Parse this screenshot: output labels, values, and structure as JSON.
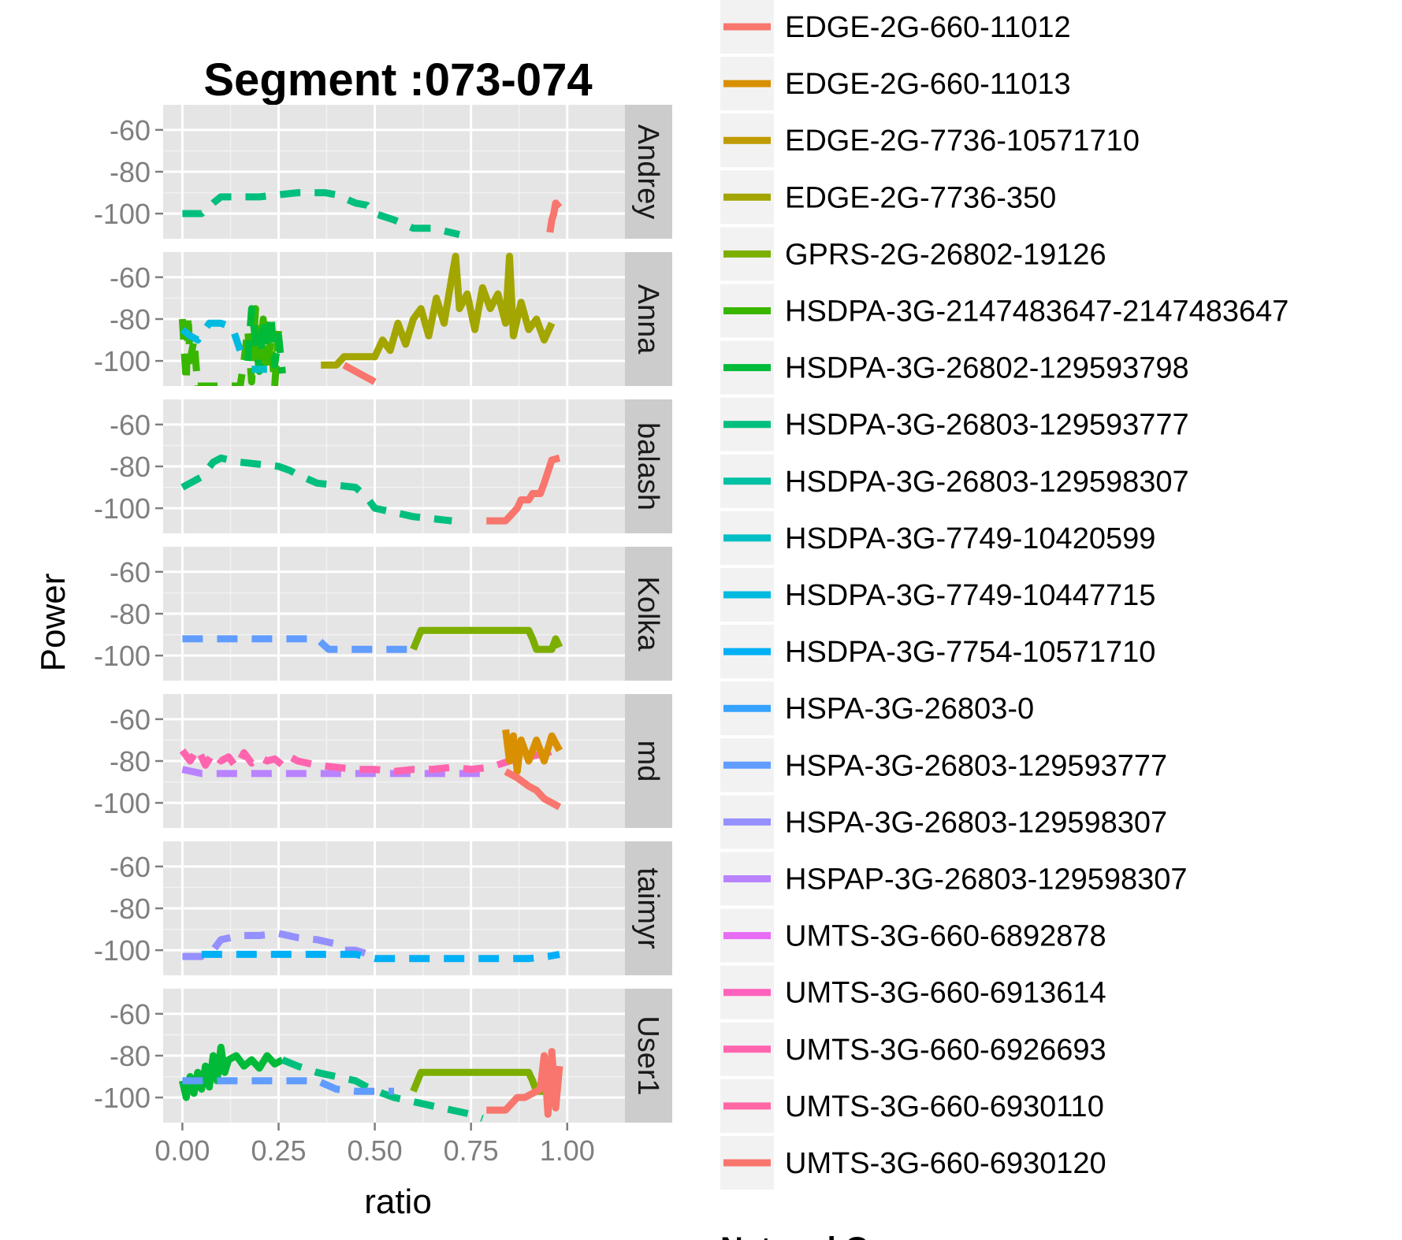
{
  "chart_data": {
    "type": "line",
    "title": "Segment :073-074",
    "xlabel": "ratio",
    "ylabel": "Power",
    "xlim": [
      -0.05,
      1.15
    ],
    "ylim": [
      -112,
      -48
    ],
    "x_ticks": [
      0.0,
      0.25,
      0.5,
      0.75,
      1.0
    ],
    "x_tick_labels": [
      "0.00",
      "0.25",
      "0.50",
      "0.75",
      "1.00"
    ],
    "y_ticks": [
      -60,
      -80,
      -100
    ],
    "y_tick_labels": [
      "-60",
      "-80",
      "-100"
    ],
    "grid": true,
    "legend_position": "right",
    "legend_title": "NetworkGen",
    "legend": [
      {
        "name": "EDGE-2G-660-11012",
        "color": "#F8766D"
      },
      {
        "name": "EDGE-2G-660-11013",
        "color": "#D89000"
      },
      {
        "name": "EDGE-2G-7736-10571710",
        "color": "#C09B00"
      },
      {
        "name": "EDGE-2G-7736-350",
        "color": "#A3A500"
      },
      {
        "name": "GPRS-2G-26802-19126",
        "color": "#7CAE00"
      },
      {
        "name": "HSDPA-3G-2147483647-2147483647",
        "color": "#39B600"
      },
      {
        "name": "HSDPA-3G-26802-129593798",
        "color": "#00BA38"
      },
      {
        "name": "HSDPA-3G-26803-129593777",
        "color": "#00BF7D"
      },
      {
        "name": "HSDPA-3G-26803-129598307",
        "color": "#00C1A3"
      },
      {
        "name": "HSDPA-3G-7749-10420599",
        "color": "#00BFC4"
      },
      {
        "name": "HSDPA-3G-7749-10447715",
        "color": "#00BAE0"
      },
      {
        "name": "HSDPA-3G-7754-10571710",
        "color": "#00B0F6"
      },
      {
        "name": "HSPA-3G-26803-0",
        "color": "#35A2FF"
      },
      {
        "name": "HSPA-3G-26803-129593777",
        "color": "#619CFF"
      },
      {
        "name": "HSPA-3G-26803-129598307",
        "color": "#9590FF"
      },
      {
        "name": "HSPAP-3G-26803-129598307",
        "color": "#B983FF"
      },
      {
        "name": "UMTS-3G-660-6892878",
        "color": "#E76BF3"
      },
      {
        "name": "UMTS-3G-660-6913614",
        "color": "#FF62BC"
      },
      {
        "name": "UMTS-3G-660-6926693",
        "color": "#FF65AE"
      },
      {
        "name": "UMTS-3G-660-6930110",
        "color": "#FF67A4"
      },
      {
        "name": "UMTS-3G-660-6930120",
        "color": "#F8766D"
      }
    ],
    "facets": [
      {
        "label": "Andrey",
        "series": [
          {
            "color": "#00BF7D",
            "dashed": true,
            "x": [
              0.0,
              0.05,
              0.08,
              0.1,
              0.12,
              0.15,
              0.2,
              0.25,
              0.3,
              0.35,
              0.37,
              0.4,
              0.45,
              0.48,
              0.5,
              0.55,
              0.6,
              0.65,
              0.72
            ],
            "y": [
              -100,
              -100,
              -95,
              -92,
              -92,
              -92,
              -92,
              -91,
              -90,
              -90,
              -90,
              -91,
              -95,
              -96,
              -100,
              -103,
              -107,
              -107,
              -110
            ]
          },
          {
            "color": "#F8766D",
            "dashed": false,
            "x": [
              0.955,
              0.96,
              0.965,
              0.97,
              0.975,
              0.98
            ],
            "y": [
              -109,
              -103,
              -100,
              -95,
              -96,
              -97
            ]
          }
        ]
      },
      {
        "label": "Anna",
        "series": [
          {
            "color": "#39B600",
            "dashed": true,
            "x": [
              0.0,
              0.005,
              0.01,
              0.015,
              0.02,
              0.03,
              0.04,
              0.06,
              0.1,
              0.13,
              0.15,
              0.16,
              0.17,
              0.18,
              0.19,
              0.2,
              0.21,
              0.22,
              0.23,
              0.24,
              0.25
            ],
            "y": [
              -80,
              -95,
              -110,
              -78,
              -100,
              -90,
              -112,
              -112,
              -112,
              -112,
              -112,
              -100,
              -85,
              -110,
              -75,
              -100,
              -80,
              -105,
              -90,
              -112,
              -85
            ]
          },
          {
            "color": "#00BA38",
            "dashed": true,
            "x": [
              0.17,
              0.18,
              0.19,
              0.2,
              0.21,
              0.22,
              0.23,
              0.24,
              0.25,
              0.26
            ],
            "y": [
              -100,
              -75,
              -90,
              -105,
              -80,
              -95,
              -78,
              -102,
              -88,
              -106
            ]
          },
          {
            "color": "#00BAE0",
            "dashed": true,
            "x": [
              0.0,
              0.02,
              0.04,
              0.07,
              0.1,
              0.13,
              0.15
            ],
            "y": [
              -85,
              -88,
              -90,
              -82,
              -82,
              -84,
              -95
            ]
          },
          {
            "color": "#00BFC4",
            "dashed": true,
            "x": [
              0.18,
              0.2,
              0.22
            ],
            "y": [
              -104,
              -104,
              -104
            ]
          },
          {
            "color": "#A3A500",
            "dashed": false,
            "x": [
              0.36,
              0.4,
              0.42,
              0.45,
              0.5,
              0.52,
              0.54,
              0.56,
              0.58,
              0.6,
              0.62,
              0.64,
              0.66,
              0.68,
              0.7,
              0.71,
              0.72,
              0.74,
              0.76,
              0.78,
              0.8,
              0.82,
              0.84,
              0.85,
              0.86,
              0.88,
              0.9,
              0.92,
              0.94,
              0.96
            ],
            "y": [
              -102,
              -102,
              -98,
              -98,
              -98,
              -90,
              -95,
              -82,
              -92,
              -80,
              -75,
              -88,
              -70,
              -82,
              -60,
              -50,
              -75,
              -68,
              -85,
              -65,
              -75,
              -68,
              -82,
              -50,
              -88,
              -72,
              -85,
              -80,
              -90,
              -82
            ]
          },
          {
            "color": "#F8766D",
            "dashed": false,
            "x": [
              0.42,
              0.45,
              0.48,
              0.5
            ],
            "y": [
              -102,
              -105,
              -108,
              -110
            ]
          }
        ]
      },
      {
        "label": "balash",
        "series": [
          {
            "color": "#00BF7D",
            "dashed": true,
            "x": [
              0.0,
              0.02,
              0.05,
              0.08,
              0.1,
              0.15,
              0.2,
              0.25,
              0.28,
              0.3,
              0.35,
              0.4,
              0.45,
              0.48,
              0.5,
              0.55,
              0.6,
              0.65,
              0.7
            ],
            "y": [
              -90,
              -88,
              -85,
              -78,
              -76,
              -78,
              -79,
              -80,
              -82,
              -84,
              -88,
              -89,
              -90,
              -95,
              -100,
              -102,
              -104,
              -105,
              -106
            ]
          },
          {
            "color": "#F8766D",
            "dashed": false,
            "x": [
              0.79,
              0.84,
              0.85,
              0.87,
              0.88,
              0.9,
              0.91,
              0.93,
              0.94,
              0.96,
              0.98
            ],
            "y": [
              -106,
              -106,
              -104,
              -100,
              -96,
              -96,
              -93,
              -93,
              -88,
              -77,
              -76
            ]
          }
        ]
      },
      {
        "label": "Kolka",
        "series": [
          {
            "color": "#619CFF",
            "dashed": true,
            "x": [
              0.0,
              0.1,
              0.2,
              0.3,
              0.35,
              0.38,
              0.45,
              0.55,
              0.6
            ],
            "y": [
              -92,
              -92,
              -92,
              -92,
              -92,
              -97,
              -97,
              -97,
              -97
            ]
          },
          {
            "color": "#7CAE00",
            "dashed": false,
            "x": [
              0.6,
              0.62,
              0.65,
              0.7,
              0.8,
              0.9,
              0.91,
              0.92,
              0.94,
              0.96,
              0.97,
              0.98
            ],
            "y": [
              -97,
              -88,
              -88,
              -88,
              -88,
              -88,
              -92,
              -97,
              -97,
              -97,
              -92,
              -96
            ]
          }
        ]
      },
      {
        "label": "md",
        "series": [
          {
            "color": "#B983FF",
            "dashed": true,
            "x": [
              0.0,
              0.05,
              0.1,
              0.15,
              0.2,
              0.25,
              0.3,
              0.35,
              0.4,
              0.45,
              0.5,
              0.55,
              0.6,
              0.65,
              0.7,
              0.75,
              0.8
            ],
            "y": [
              -84,
              -86,
              -86,
              -86,
              -86,
              -86,
              -86,
              -86,
              -86,
              -86,
              -86,
              -86,
              -86,
              -86,
              -86,
              -86,
              -86
            ]
          },
          {
            "color": "#FF65AE",
            "dashed": true,
            "x": [
              0.0,
              0.02,
              0.04,
              0.06,
              0.08,
              0.1,
              0.12,
              0.14,
              0.16,
              0.18,
              0.2,
              0.22,
              0.24,
              0.26,
              0.28,
              0.3,
              0.35,
              0.4,
              0.45,
              0.5,
              0.55,
              0.6,
              0.65,
              0.7,
              0.75,
              0.8,
              0.85,
              0.9,
              0.95,
              0.98
            ],
            "y": [
              -75,
              -80,
              -74,
              -82,
              -76,
              -80,
              -78,
              -83,
              -76,
              -81,
              -78,
              -80,
              -79,
              -82,
              -78,
              -80,
              -82,
              -83,
              -84,
              -84,
              -85,
              -84,
              -84,
              -83,
              -84,
              -83,
              -80,
              -78,
              -76,
              -74
            ]
          },
          {
            "color": "#D89000",
            "dashed": false,
            "x": [
              0.84,
              0.85,
              0.86,
              0.87,
              0.88,
              0.9,
              0.91,
              0.92,
              0.94,
              0.96,
              0.98
            ],
            "y": [
              -65,
              -80,
              -68,
              -85,
              -70,
              -80,
              -75,
              -70,
              -80,
              -68,
              -75
            ]
          },
          {
            "color": "#F8766D",
            "dashed": false,
            "x": [
              0.84,
              0.87,
              0.9,
              0.92,
              0.94,
              0.96,
              0.98
            ],
            "y": [
              -85,
              -88,
              -92,
              -94,
              -98,
              -100,
              -102
            ]
          }
        ]
      },
      {
        "label": "taimyr",
        "series": [
          {
            "color": "#9590FF",
            "dashed": true,
            "x": [
              0.0,
              0.05,
              0.08,
              0.1,
              0.15,
              0.2,
              0.25,
              0.3,
              0.35,
              0.4,
              0.42,
              0.45,
              0.5
            ],
            "y": [
              -103,
              -103,
              -100,
              -95,
              -93,
              -93,
              -92,
              -94,
              -95,
              -97,
              -100,
              -100,
              -103
            ]
          },
          {
            "color": "#00B0F6",
            "dashed": true,
            "x": [
              0.05,
              0.1,
              0.15,
              0.2,
              0.25,
              0.3,
              0.35,
              0.4,
              0.45,
              0.5,
              0.55,
              0.6,
              0.65,
              0.7,
              0.75,
              0.8,
              0.85,
              0.9,
              0.95,
              0.98
            ],
            "y": [
              -102,
              -102,
              -102,
              -102,
              -102,
              -102,
              -102,
              -102,
              -102,
              -104,
              -104,
              -104,
              -104,
              -104,
              -104,
              -104,
              -104,
              -104,
              -103,
              -102
            ]
          }
        ]
      },
      {
        "label": "User1",
        "series": [
          {
            "color": "#00BA38",
            "dashed": false,
            "x": [
              0.0,
              0.01,
              0.02,
              0.03,
              0.04,
              0.05,
              0.06,
              0.07,
              0.08,
              0.09,
              0.1,
              0.11,
              0.12,
              0.14,
              0.16,
              0.18,
              0.2,
              0.22,
              0.24,
              0.26
            ],
            "y": [
              -92,
              -100,
              -90,
              -98,
              -88,
              -96,
              -85,
              -95,
              -80,
              -92,
              -76,
              -88,
              -82,
              -80,
              -85,
              -82,
              -86,
              -80,
              -84,
              -82
            ]
          },
          {
            "color": "#00BF7D",
            "dashed": true,
            "x": [
              0.26,
              0.3,
              0.35,
              0.4,
              0.45,
              0.48,
              0.52,
              0.55,
              0.6,
              0.65,
              0.7,
              0.75,
              0.78
            ],
            "y": [
              -82,
              -85,
              -88,
              -90,
              -92,
              -95,
              -98,
              -100,
              -102,
              -104,
              -106,
              -108,
              -110
            ]
          },
          {
            "color": "#619CFF",
            "dashed": true,
            "x": [
              0.0,
              0.1,
              0.2,
              0.3,
              0.35,
              0.4,
              0.45,
              0.5,
              0.55
            ],
            "y": [
              -92,
              -92,
              -92,
              -92,
              -92,
              -96,
              -97,
              -97,
              -97
            ]
          },
          {
            "color": "#7CAE00",
            "dashed": false,
            "x": [
              0.6,
              0.62,
              0.65,
              0.7,
              0.8,
              0.9,
              0.91,
              0.92,
              0.94,
              0.96,
              0.97
            ],
            "y": [
              -97,
              -88,
              -88,
              -88,
              -88,
              -88,
              -92,
              -97,
              -97,
              -97,
              -93
            ]
          },
          {
            "color": "#F8766D",
            "dashed": false,
            "x": [
              0.79,
              0.84,
              0.85,
              0.87,
              0.89,
              0.91,
              0.93,
              0.94,
              0.95,
              0.96,
              0.97,
              0.98
            ],
            "y": [
              -106,
              -106,
              -104,
              -100,
              -100,
              -98,
              -96,
              -80,
              -108,
              -78,
              -105,
              -85
            ]
          }
        ]
      }
    ]
  }
}
